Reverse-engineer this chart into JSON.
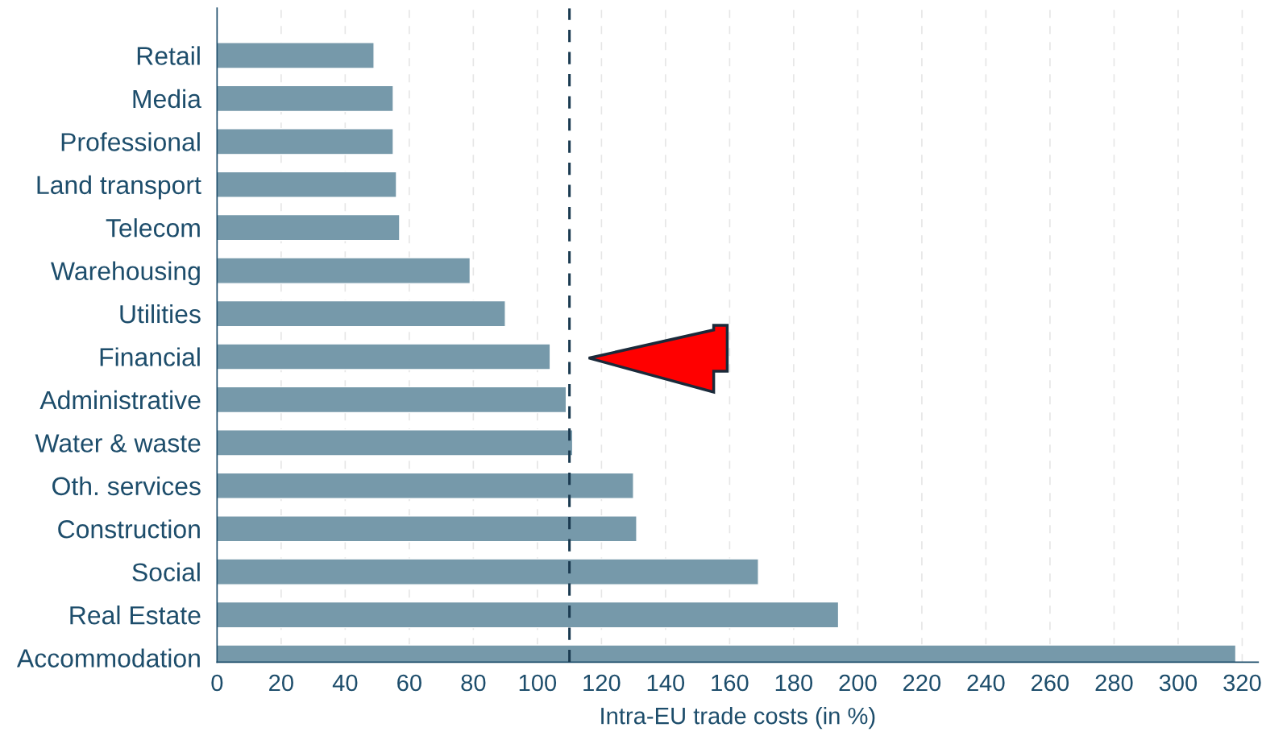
{
  "chart_data": {
    "type": "bar",
    "orientation": "horizontal",
    "xlabel": "Intra-EU trade costs (in %)",
    "categories": [
      "Retail",
      "Media",
      "Professional",
      "Land transport",
      "Telecom",
      "Warehousing",
      "Utilities",
      "Financial",
      "Administrative",
      "Water & waste",
      "Oth. services",
      "Construction",
      "Social",
      "Real Estate",
      "Accommodation"
    ],
    "values": [
      49,
      55,
      55,
      56,
      57,
      79,
      90,
      104,
      109,
      111,
      130,
      131,
      169,
      194,
      318
    ],
    "color": "#7699aa",
    "xlim": [
      0,
      325
    ],
    "xticks": [
      0,
      20,
      40,
      60,
      80,
      100,
      120,
      140,
      160,
      180,
      200,
      220,
      240,
      260,
      280,
      300,
      320
    ],
    "grid": "x",
    "ref_lines": [
      {
        "axis": "x",
        "value": 110,
        "color": "#1a3a50",
        "line_style": "dashed"
      }
    ]
  }
}
